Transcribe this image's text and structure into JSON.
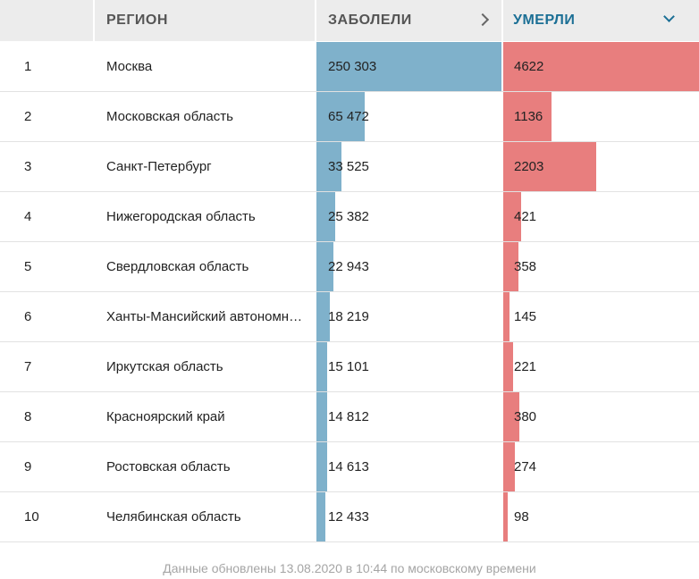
{
  "header": {
    "num": "",
    "region": "РЕГИОН",
    "cases": "ЗАБОЛЕЛИ",
    "deaths": "УМЕРЛИ"
  },
  "rows": [
    {
      "num": "1",
      "region": "Москва",
      "cases": "250 303",
      "deaths": "4622",
      "cases_share": 1.0,
      "deaths_share": 1.0
    },
    {
      "num": "2",
      "region": "Московская область",
      "cases": "65 472",
      "deaths": "1136",
      "cases_share": 0.262,
      "deaths_share": 0.246
    },
    {
      "num": "3",
      "region": "Санкт-Петербург",
      "cases": "33 525",
      "deaths": "2203",
      "cases_share": 0.134,
      "deaths_share": 0.477
    },
    {
      "num": "4",
      "region": "Нижегородская область",
      "cases": "25 382",
      "deaths": "421",
      "cases_share": 0.101,
      "deaths_share": 0.091
    },
    {
      "num": "5",
      "region": "Свердловская область",
      "cases": "22 943",
      "deaths": "358",
      "cases_share": 0.092,
      "deaths_share": 0.077
    },
    {
      "num": "6",
      "region": "Ханты-Мансийский автономный округ — Югра",
      "cases": "18 219",
      "deaths": "145",
      "cases_share": 0.073,
      "deaths_share": 0.031
    },
    {
      "num": "7",
      "region": "Иркутская область",
      "cases": "15 101",
      "deaths": "221",
      "cases_share": 0.06,
      "deaths_share": 0.048
    },
    {
      "num": "8",
      "region": "Красноярский край",
      "cases": "14 812",
      "deaths": "380",
      "cases_share": 0.059,
      "deaths_share": 0.082
    },
    {
      "num": "9",
      "region": "Ростовская область",
      "cases": "14 613",
      "deaths": "274",
      "cases_share": 0.058,
      "deaths_share": 0.059
    },
    {
      "num": "10",
      "region": "Челябинская область",
      "cases": "12 433",
      "deaths": "98",
      "cases_share": 0.05,
      "deaths_share": 0.021
    }
  ],
  "colors": {
    "cases_bar": "#7fb1cb",
    "deaths_bar": "#e87e7e",
    "sorted_header": "#1b6f95"
  },
  "footer": "Данные обновлены 13.08.2020 в 10:44 по московскому времени"
}
